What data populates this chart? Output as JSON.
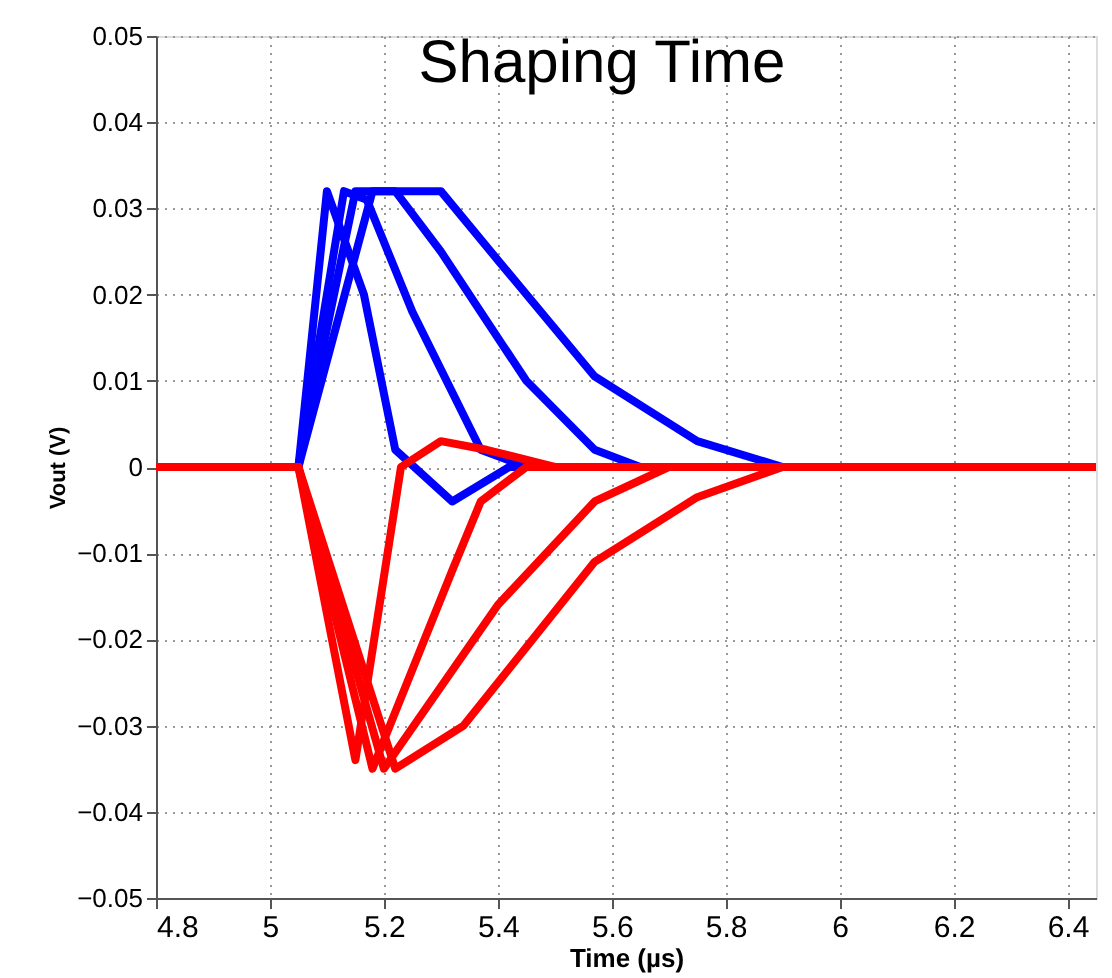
{
  "chart_data": {
    "type": "line",
    "title": "Shaping Time",
    "xlabel": "Time (µs)",
    "ylabel": "Vout (V)",
    "xlim": [
      4.8,
      6.45
    ],
    "xticks": [
      4.8,
      5,
      5.2,
      5.4,
      5.6,
      5.8,
      6,
      6.2,
      6.4
    ],
    "ylim": [
      -0.05,
      0.05
    ],
    "yticks": [
      -0.05,
      -0.04,
      -0.03,
      -0.02,
      -0.01,
      0,
      0.01,
      0.02,
      0.03,
      0.04,
      0.05
    ],
    "grid": true,
    "line_style": "solid",
    "marker": "none",
    "series": [
      {
        "color": "#0000ff",
        "x": [
          4.8,
          5.05,
          5.1,
          5.165,
          5.22,
          5.32,
          5.42,
          6.45
        ],
        "values": [
          0,
          0,
          0.032,
          0.02,
          0.002,
          -0.004,
          0,
          0
        ]
      },
      {
        "color": "#0000ff",
        "x": [
          4.8,
          5.05,
          5.13,
          5.17,
          5.25,
          5.37,
          5.45,
          6.45
        ],
        "values": [
          0,
          0,
          0.032,
          0.031,
          0.018,
          0.002,
          0,
          0
        ]
      },
      {
        "color": "#0000ff",
        "x": [
          4.8,
          5.05,
          5.15,
          5.22,
          5.3,
          5.45,
          5.57,
          5.65,
          6.45
        ],
        "values": [
          0,
          0,
          0.032,
          0.032,
          0.025,
          0.01,
          0.002,
          0,
          0
        ]
      },
      {
        "color": "#0000ff",
        "x": [
          4.8,
          5.05,
          5.18,
          5.3,
          5.4,
          5.57,
          5.75,
          5.9,
          6.45
        ],
        "values": [
          0,
          0,
          0.032,
          0.032,
          0.024,
          0.0105,
          0.003,
          0,
          0
        ]
      },
      {
        "color": "#ff0000",
        "x": [
          4.8,
          5.05,
          5.15,
          5.23,
          5.3,
          5.38,
          5.5,
          6.45
        ],
        "values": [
          0,
          0,
          -0.034,
          0,
          0.003,
          0.002,
          0,
          0
        ]
      },
      {
        "color": "#ff0000",
        "x": [
          4.8,
          5.05,
          5.18,
          5.32,
          5.37,
          5.45,
          6.45
        ],
        "values": [
          0,
          0,
          -0.035,
          -0.012,
          -0.004,
          0,
          0
        ]
      },
      {
        "color": "#ff0000",
        "x": [
          4.8,
          5.05,
          5.2,
          5.4,
          5.57,
          5.7,
          6.45
        ],
        "values": [
          0,
          0,
          -0.035,
          -0.016,
          -0.004,
          0,
          0
        ]
      },
      {
        "color": "#ff0000",
        "x": [
          4.8,
          5.05,
          5.22,
          5.34,
          5.57,
          5.75,
          5.9,
          6.45
        ],
        "values": [
          0,
          0,
          -0.035,
          -0.03,
          -0.011,
          -0.0035,
          0,
          0
        ]
      }
    ]
  }
}
